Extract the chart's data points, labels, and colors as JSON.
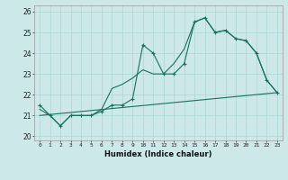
{
  "title": "",
  "xlabel": "Humidex (Indice chaleur)",
  "ylabel": "",
  "bg_color": "#cce8e8",
  "grid_color": "#aad4d4",
  "line_color": "#1a7060",
  "xlim": [
    -0.5,
    23.5
  ],
  "ylim": [
    19.8,
    26.3
  ],
  "xticks": [
    0,
    1,
    2,
    3,
    4,
    5,
    6,
    7,
    8,
    9,
    10,
    11,
    12,
    13,
    14,
    15,
    16,
    17,
    18,
    19,
    20,
    21,
    22,
    23
  ],
  "yticks": [
    20,
    21,
    22,
    23,
    24,
    25,
    26
  ],
  "series": [
    {
      "x": [
        0,
        1,
        2,
        3,
        4,
        5,
        6,
        7,
        8,
        9,
        10,
        11,
        12,
        13,
        14,
        15,
        16,
        17,
        18,
        19,
        20,
        21,
        22,
        23
      ],
      "y": [
        21.5,
        21.0,
        20.5,
        21.0,
        21.0,
        21.0,
        21.2,
        21.5,
        21.5,
        21.8,
        24.4,
        24.0,
        23.0,
        23.0,
        23.5,
        25.5,
        25.7,
        25.0,
        25.1,
        24.7,
        24.6,
        24.0,
        22.7,
        22.1
      ],
      "marker": true
    },
    {
      "x": [
        0,
        1,
        2,
        3,
        4,
        5,
        6,
        7,
        8,
        9,
        10,
        11,
        12,
        13,
        14,
        15,
        16,
        17,
        18,
        19,
        20,
        21,
        22,
        23
      ],
      "y": [
        21.3,
        21.0,
        20.5,
        21.0,
        21.0,
        21.0,
        21.3,
        22.3,
        22.5,
        22.8,
        23.2,
        23.0,
        23.0,
        23.5,
        24.2,
        25.5,
        25.7,
        25.0,
        25.1,
        24.7,
        24.6,
        24.0,
        22.7,
        22.1
      ],
      "marker": false
    },
    {
      "x": [
        0,
        23
      ],
      "y": [
        21.0,
        22.1
      ],
      "marker": false
    }
  ]
}
